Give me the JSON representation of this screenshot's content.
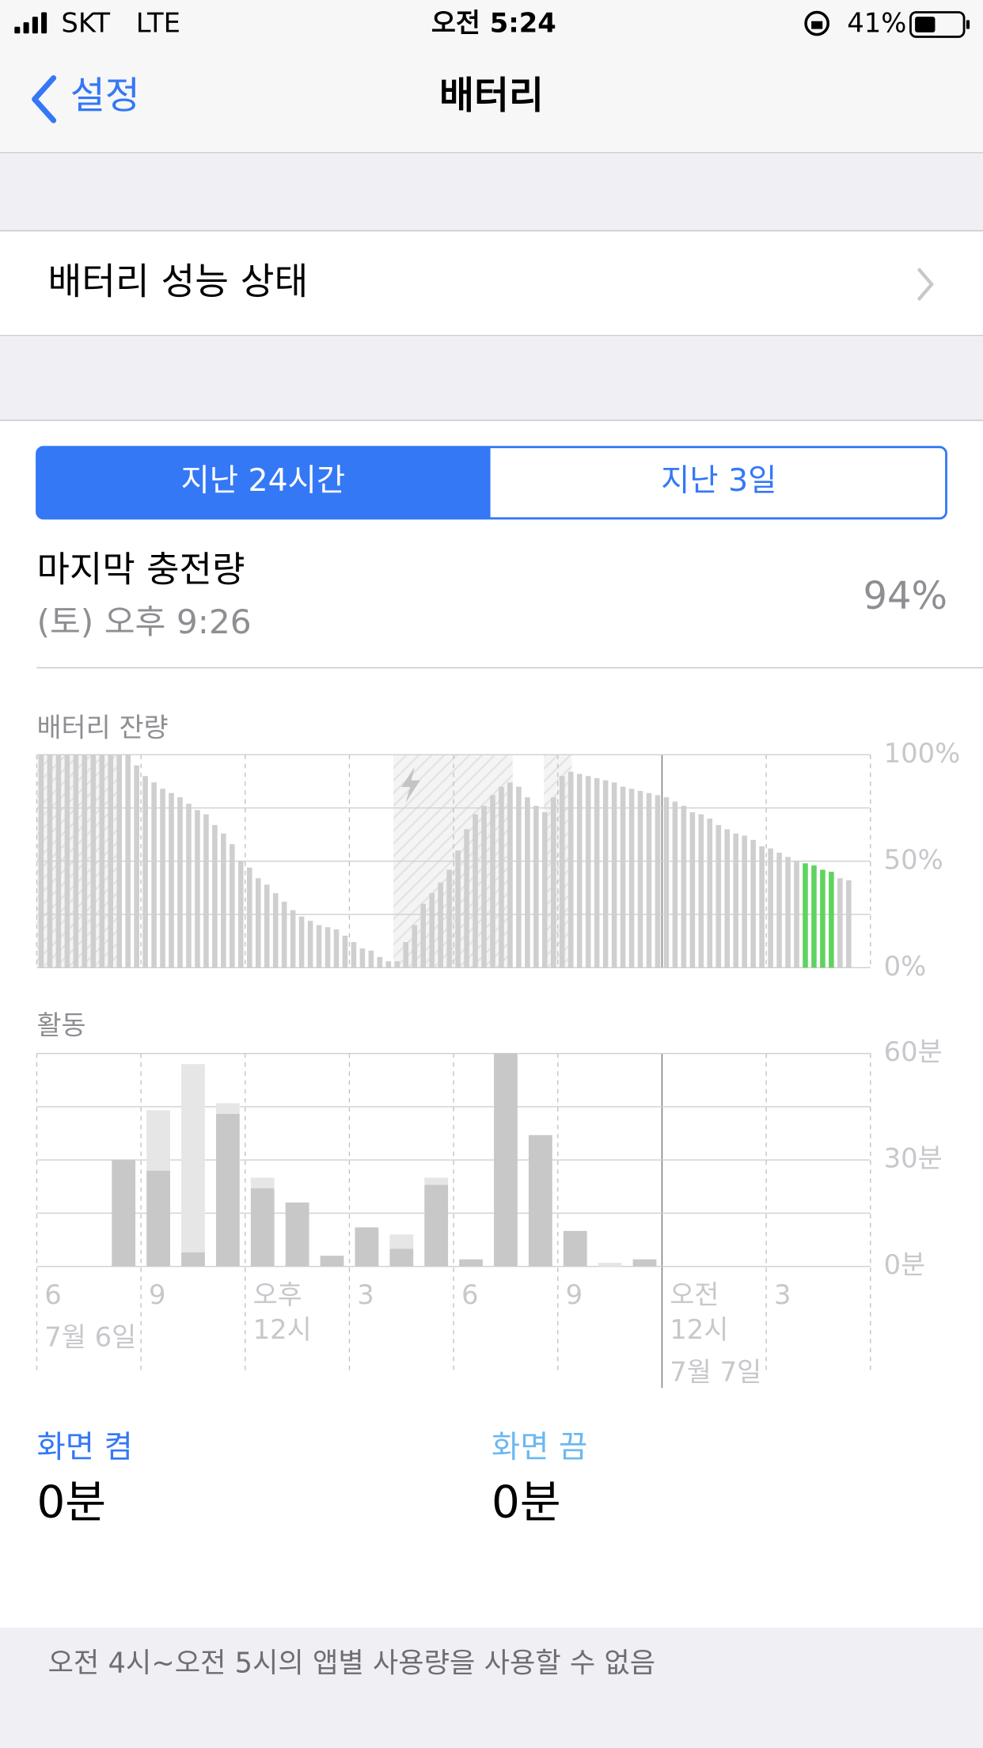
{
  "status_bar": {
    "carrier": "SKT",
    "network": "LTE",
    "time": "오전 5:24",
    "battery": "41%"
  },
  "nav": {
    "back": "설정",
    "title": "배터리"
  },
  "battery_health": "배터리 성능 상태",
  "segments": [
    "지난 24시간",
    "지난 3일"
  ],
  "last_charge": {
    "label": "마지막 충전량",
    "time": "(토) 오후 9:26",
    "value": "94%"
  },
  "chart_data": [
    {
      "type": "bar",
      "title": "배터리 잔량",
      "ylim": [
        0,
        100
      ],
      "yticks": [
        {
          "value": 0,
          "label": "0%"
        },
        {
          "value": 50,
          "label": "50%"
        },
        {
          "value": 100,
          "label": "100%"
        }
      ],
      "ygrid": [
        0,
        25,
        50,
        75,
        100
      ],
      "series": [
        {
          "color": "#cfcfcf",
          "values": [
            100,
            100,
            100,
            100,
            100,
            100,
            100,
            100,
            100,
            100,
            100,
            95,
            90,
            87,
            84,
            82,
            80,
            77,
            74,
            72,
            67,
            63,
            58,
            50,
            47,
            42,
            39,
            35,
            31,
            27,
            24,
            22,
            20,
            19,
            18,
            15,
            12,
            9,
            8,
            5,
            3,
            3,
            12,
            20,
            30,
            35,
            40,
            46,
            55,
            65,
            72,
            76,
            81,
            85,
            87,
            85,
            80,
            76,
            73,
            80,
            90,
            92,
            91,
            90,
            89,
            88,
            87,
            85,
            84,
            83,
            82,
            81,
            80,
            78,
            76,
            73,
            72,
            70,
            67,
            65,
            63,
            62,
            60,
            57,
            56,
            54,
            52,
            50,
            null,
            null,
            null,
            null,
            42,
            41
          ]
        },
        {
          "color": "#5fd35f",
          "values": [
            null,
            null,
            null,
            null,
            null,
            null,
            null,
            null,
            null,
            null,
            null,
            null,
            null,
            null,
            null,
            null,
            null,
            null,
            null,
            null,
            null,
            null,
            null,
            null,
            null,
            null,
            null,
            null,
            null,
            null,
            null,
            null,
            null,
            null,
            null,
            null,
            null,
            null,
            null,
            null,
            null,
            null,
            null,
            null,
            null,
            null,
            null,
            null,
            null,
            null,
            null,
            null,
            null,
            null,
            null,
            null,
            null,
            null,
            null,
            null,
            null,
            null,
            null,
            null,
            null,
            null,
            null,
            null,
            null,
            null,
            null,
            null,
            null,
            null,
            null,
            null,
            null,
            null,
            null,
            null,
            null,
            null,
            null,
            null,
            null,
            null,
            null,
            null,
            49,
            48,
            46,
            45,
            null,
            null
          ]
        }
      ]
    },
    {
      "type": "stacked-bar",
      "title": "활동",
      "ylim": [
        0,
        60
      ],
      "yticks": [
        {
          "value": 0,
          "label": "0분"
        },
        {
          "value": 30,
          "label": "30분"
        },
        {
          "value": 60,
          "label": "60분"
        }
      ],
      "ygrid": [
        0,
        15,
        30,
        45,
        60
      ],
      "categories": [
        "6",
        null,
        null,
        "9",
        null,
        null,
        "오후",
        null,
        null,
        "3",
        null,
        null,
        "6",
        null,
        null,
        "9",
        null,
        null,
        "오전",
        null,
        null,
        "3",
        null,
        null
      ],
      "categories_line2": [
        null,
        null,
        null,
        null,
        null,
        null,
        "12시",
        null,
        null,
        null,
        null,
        null,
        null,
        null,
        null,
        null,
        null,
        null,
        "12시",
        null,
        null,
        null,
        null,
        null
      ],
      "date_labels": [
        "7월 6일",
        null,
        null,
        null,
        null,
        null,
        null,
        null,
        null,
        null,
        null,
        null,
        null,
        null,
        null,
        null,
        null,
        null,
        "7월 7일",
        null,
        null,
        null,
        null,
        null
      ],
      "series": [
        {
          "color": "#c8c8c8",
          "values": [
            0,
            0,
            30,
            27,
            4,
            43,
            22,
            18,
            3,
            11,
            5,
            23,
            2,
            60,
            37,
            10,
            0,
            2,
            0,
            0,
            0,
            0,
            0,
            0
          ]
        },
        {
          "color": "#e6e6e6",
          "values": [
            0,
            0,
            0,
            17,
            53,
            3,
            3,
            0,
            0,
            0,
            4,
            2,
            0,
            0,
            0,
            0,
            1,
            0,
            0,
            0,
            0,
            0,
            0,
            0
          ]
        }
      ]
    }
  ],
  "screen": {
    "on_label": "화면 켬",
    "on_value": "0분",
    "off_label": "화면 끔",
    "off_value": "0분"
  },
  "footer": "오전 4시~오전 5시의 앱별 사용량을 사용할 수 없음"
}
